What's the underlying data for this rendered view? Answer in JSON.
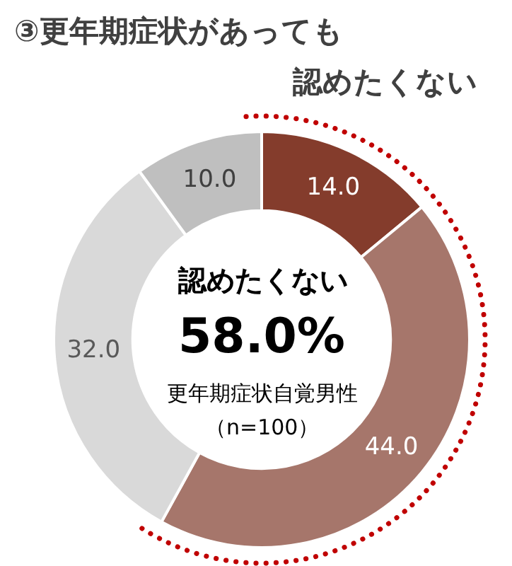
{
  "chart_data": {
    "type": "donut",
    "title": "③更年期症状があっても",
    "subtitle": "認めたくない",
    "categories": [
      null,
      null,
      null,
      null
    ],
    "values": [
      14,
      44,
      32,
      10
    ],
    "value_labels": [
      "14.0",
      "44.0",
      "32.0",
      "10.0"
    ],
    "colors": [
      "#843c2c",
      "#a6766b",
      "#d9d9d9",
      "#bfbfbf"
    ],
    "annotations": [
      "認めたくない",
      "58.0%",
      "更年期症状自覚男性",
      "（n=100）"
    ],
    "legend": false
  }
}
